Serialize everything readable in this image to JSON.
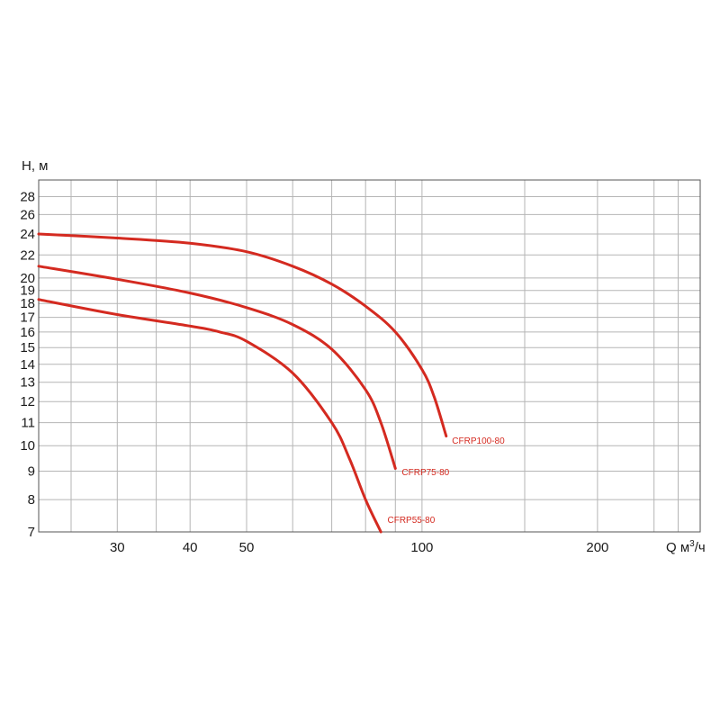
{
  "chart_data": {
    "type": "line",
    "title": "",
    "ylabel": "H, м",
    "xlabel_prefix": "Q м",
    "xlabel_sup": "3",
    "xlabel_suffix": "/ч",
    "x_scale": "log",
    "y_scale": "log",
    "xlim": [
      22,
      300
    ],
    "ylim": [
      7,
      30
    ],
    "x_ticks": [
      {
        "value": 30,
        "label": "30"
      },
      {
        "value": 40,
        "label": "40"
      },
      {
        "value": 50,
        "label": "50"
      },
      {
        "value": 100,
        "label": "100"
      },
      {
        "value": 200,
        "label": "200"
      }
    ],
    "x_grid": [
      25,
      30,
      35,
      40,
      50,
      60,
      70,
      80,
      90,
      100,
      150,
      200,
      250,
      275
    ],
    "y_ticks": [
      {
        "value": 7,
        "label": "7"
      },
      {
        "value": 8,
        "label": "8"
      },
      {
        "value": 9,
        "label": "9"
      },
      {
        "value": 10,
        "label": "10"
      },
      {
        "value": 11,
        "label": "11"
      },
      {
        "value": 12,
        "label": "12"
      },
      {
        "value": 13,
        "label": "13"
      },
      {
        "value": 14,
        "label": "14"
      },
      {
        "value": 15,
        "label": "15"
      },
      {
        "value": 16,
        "label": "16"
      },
      {
        "value": 17,
        "label": "17"
      },
      {
        "value": 18,
        "label": "18"
      },
      {
        "value": 19,
        "label": "19"
      },
      {
        "value": 20,
        "label": "20"
      },
      {
        "value": 22,
        "label": "22"
      },
      {
        "value": 24,
        "label": "24"
      },
      {
        "value": 26,
        "label": "26"
      },
      {
        "value": 28,
        "label": "28"
      }
    ],
    "grid": true,
    "line_color": "#d42a20",
    "label_color": "#d42a20",
    "series": [
      {
        "name": "CFRP100-80",
        "points": [
          [
            22,
            24
          ],
          [
            30,
            23.6
          ],
          [
            40,
            23.1
          ],
          [
            50,
            22.3
          ],
          [
            60,
            21.0
          ],
          [
            70,
            19.5
          ],
          [
            80,
            17.8
          ],
          [
            90,
            16.0
          ],
          [
            100,
            13.7
          ],
          [
            105,
            12.2
          ],
          [
            110,
            10.4
          ]
        ],
        "label_at": [
          111,
          10.2
        ]
      },
      {
        "name": "CFRP75-80",
        "points": [
          [
            22,
            21.0
          ],
          [
            30,
            19.9
          ],
          [
            40,
            18.8
          ],
          [
            50,
            17.7
          ],
          [
            60,
            16.5
          ],
          [
            70,
            14.9
          ],
          [
            80,
            12.6
          ],
          [
            85,
            11.0
          ],
          [
            90,
            9.1
          ]
        ],
        "label_at": [
          91,
          8.95
        ]
      },
      {
        "name": "CFRP55-80",
        "points": [
          [
            22,
            18.3
          ],
          [
            30,
            17.2
          ],
          [
            40,
            16.4
          ],
          [
            45,
            16.0
          ],
          [
            50,
            15.4
          ],
          [
            60,
            13.5
          ],
          [
            70,
            11.0
          ],
          [
            75,
            9.5
          ],
          [
            80,
            8.0
          ],
          [
            85,
            7.0
          ]
        ],
        "label_at": [
          86,
          7.35
        ]
      }
    ]
  }
}
